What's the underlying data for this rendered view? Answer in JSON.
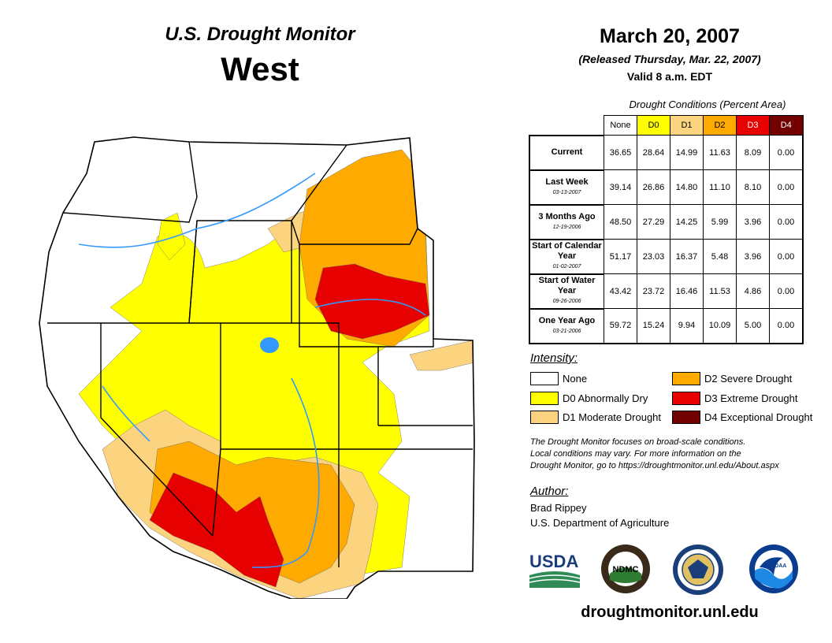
{
  "header": {
    "program": "U.S. Drought Monitor",
    "region": "West",
    "date": "March 20, 2007",
    "released": "(Released Thursday, Mar. 22, 2007)",
    "valid": "Valid 8 a.m. EDT"
  },
  "table": {
    "caption": "Drought Conditions (Percent Area)",
    "columns": [
      {
        "label": "None",
        "color": "#ffffff",
        "text_color": "#000000"
      },
      {
        "label": "D0",
        "color": "#ffff00",
        "text_color": "#000000"
      },
      {
        "label": "D1",
        "color": "#fcd37f",
        "text_color": "#000000"
      },
      {
        "label": "D2",
        "color": "#ffaa00",
        "text_color": "#000000"
      },
      {
        "label": "D3",
        "color": "#e60000",
        "text_color": "#ffffff"
      },
      {
        "label": "D4",
        "color": "#730000",
        "text_color": "#ffffff"
      }
    ],
    "rows": [
      {
        "label": "Current",
        "date": "",
        "values": [
          "36.65",
          "28.64",
          "14.99",
          "11.63",
          "8.09",
          "0.00"
        ]
      },
      {
        "label": "Last Week",
        "date": "03-13-2007",
        "values": [
          "39.14",
          "26.86",
          "14.80",
          "11.10",
          "8.10",
          "0.00"
        ]
      },
      {
        "label": "3 Months Ago",
        "date": "12-19-2006",
        "values": [
          "48.50",
          "27.29",
          "14.25",
          "5.99",
          "3.96",
          "0.00"
        ]
      },
      {
        "label": "Start of Calendar Year",
        "date": "01-02-2007",
        "values": [
          "51.17",
          "23.03",
          "16.37",
          "5.48",
          "3.96",
          "0.00"
        ]
      },
      {
        "label": "Start of Water Year",
        "date": "09-26-2006",
        "values": [
          "43.42",
          "23.72",
          "16.46",
          "11.53",
          "4.86",
          "0.00"
        ]
      },
      {
        "label": "One Year Ago",
        "date": "03-21-2006",
        "values": [
          "59.72",
          "15.24",
          "9.94",
          "10.09",
          "5.00",
          "0.00"
        ]
      }
    ]
  },
  "legend": {
    "title": "Intensity:",
    "items": [
      {
        "label": "None",
        "color": "#ffffff"
      },
      {
        "label": "D0 Abnormally Dry",
        "color": "#ffff00"
      },
      {
        "label": "D1 Moderate Drought",
        "color": "#fcd37f"
      },
      {
        "label": "D2 Severe Drought",
        "color": "#ffaa00"
      },
      {
        "label": "D3 Extreme Drought",
        "color": "#e60000"
      },
      {
        "label": "D4 Exceptional Drought",
        "color": "#730000"
      }
    ]
  },
  "note": {
    "line1": "The Drought Monitor focuses on broad-scale conditions.",
    "line2": "Local conditions may vary. For more information on the",
    "line3": "Drought Monitor, go to https://droughtmonitor.unl.edu/About.aspx"
  },
  "author": {
    "title": "Author:",
    "name": "Brad Rippey",
    "org": "U.S. Department of Agriculture"
  },
  "logos": {
    "usda": "USDA",
    "ndmc": "NDMC",
    "noaa": "NOAA"
  },
  "site": "droughtmonitor.unl.edu",
  "map_colors": {
    "none": "#ffffff",
    "d0": "#ffff00",
    "d1": "#fcd37f",
    "d2": "#ffaa00",
    "d3": "#e60000",
    "water": "#3399ff"
  }
}
